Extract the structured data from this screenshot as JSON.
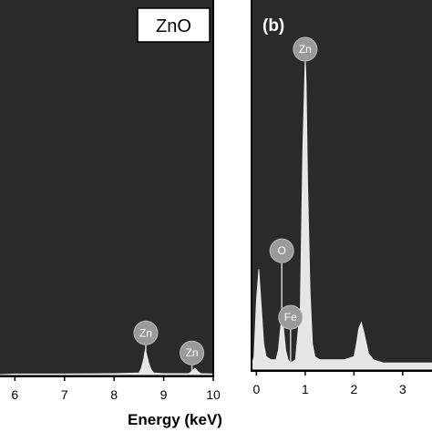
{
  "colors": {
    "panel_bg": "#2a2a2a",
    "spectrum_fill": "#e6e6e6",
    "marker_fill": "#9a9a9a"
  },
  "chart_data": [
    {
      "type": "area",
      "panel_title": "ZnO",
      "xlabel": "Energy (keV)",
      "xlim": [
        5.7,
        10
      ],
      "x_ticks": [
        "6",
        "7",
        "8",
        "9",
        "10"
      ],
      "series": [
        {
          "x": [
            5.7,
            6.0,
            7.0,
            8.0,
            8.5,
            8.55,
            8.6,
            8.63,
            8.66,
            8.7,
            8.75,
            8.8,
            9.0,
            9.5,
            9.55,
            9.6,
            9.63,
            9.66,
            9.7,
            9.75,
            10.0
          ],
          "y": [
            0,
            0.2,
            0.2,
            0.3,
            0.5,
            2.0,
            5.0,
            8.0,
            6.0,
            3.5,
            1.5,
            0.5,
            0.3,
            0.3,
            0.8,
            1.5,
            2.0,
            1.5,
            0.8,
            0.3,
            0.2
          ]
        }
      ],
      "peaks": [
        {
          "label": "Zn",
          "x": 8.64
        },
        {
          "label": "Zn",
          "x": 9.57
        }
      ]
    },
    {
      "type": "area",
      "panel_letter": "(b)",
      "xlim": [
        -0.1,
        3.6
      ],
      "x_ticks": [
        "0",
        "1",
        "2",
        "3"
      ],
      "series": [
        {
          "x": [
            -0.1,
            -0.05,
            0.0,
            0.05,
            0.1,
            0.15,
            0.2,
            0.3,
            0.4,
            0.45,
            0.5,
            0.52,
            0.55,
            0.6,
            0.65,
            0.7,
            0.8,
            0.9,
            0.95,
            1.0,
            1.02,
            1.05,
            1.1,
            1.15,
            1.2,
            1.3,
            1.5,
            1.8,
            2.0,
            2.05,
            2.1,
            2.15,
            2.2,
            2.3,
            2.4,
            2.6,
            3.0,
            3.4,
            3.6
          ],
          "y": [
            1,
            4,
            22,
            32,
            20,
            8,
            4,
            3,
            3,
            6,
            14,
            16,
            14,
            6,
            3,
            2,
            3,
            20,
            70,
            100,
            92,
            60,
            25,
            8,
            4,
            3,
            3,
            3,
            4,
            8,
            13,
            15,
            12,
            5,
            3,
            2,
            2,
            2,
            2
          ]
        }
      ],
      "peaks": [
        {
          "label": "O",
          "x": 0.52
        },
        {
          "label": "Fe",
          "x": 0.7
        },
        {
          "label": "Zn",
          "x": 1.0
        }
      ]
    }
  ]
}
